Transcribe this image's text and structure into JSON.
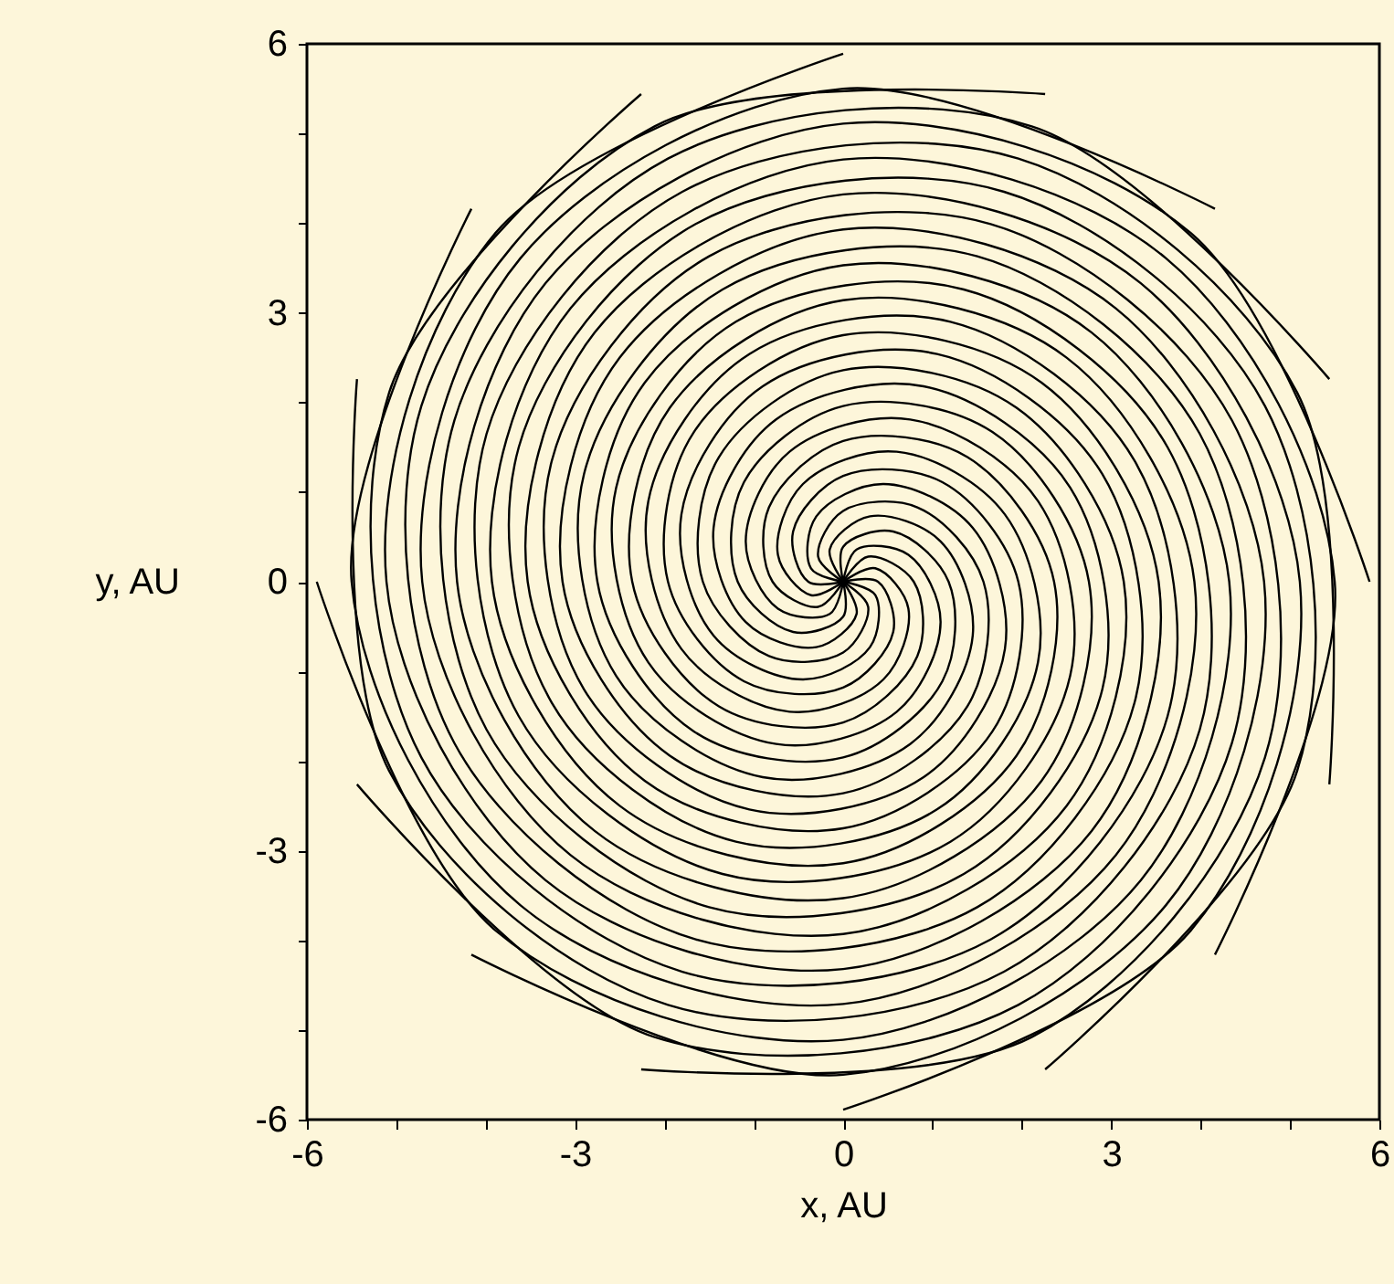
{
  "chart_data": {
    "type": "line",
    "xlabel": "x, AU",
    "ylabel": "y, AU",
    "xlim": [
      -6,
      6
    ],
    "ylim": [
      -6,
      6
    ],
    "xticks": [
      -6,
      {
        "value": -5,
        "label": null
      },
      {
        "value": -4,
        "label": null
      },
      -3,
      {
        "value": -2,
        "label": null
      },
      {
        "value": -1,
        "label": null
      },
      0,
      {
        "value": 1,
        "label": null
      },
      {
        "value": 2,
        "label": null
      },
      3,
      {
        "value": 4,
        "label": null
      },
      {
        "value": 5,
        "label": null
      },
      6
    ],
    "yticks": [
      -6,
      {
        "value": -5,
        "label": null
      },
      {
        "value": -4,
        "label": null
      },
      -3,
      {
        "value": -2,
        "label": null
      },
      {
        "value": -1,
        "label": null
      },
      0,
      {
        "value": 1,
        "label": null
      },
      {
        "value": 2,
        "label": null
      },
      3,
      {
        "value": 4,
        "label": null
      },
      {
        "value": 5,
        "label": null
      },
      6
    ],
    "grid": false,
    "legend": false,
    "marker": "none",
    "line_style": "solid",
    "series": [
      {
        "color": "#000000",
        "x": [
          0,
          0.28,
          0,
          -0.83,
          -1.57,
          -1.39,
          0,
          1.94,
          3.14,
          2.5,
          0,
          -3.05,
          -4.71,
          -3.61,
          0,
          4.16
        ],
        "values": [
          0,
          -0.28,
          -0.79,
          -0.83,
          0,
          1.39,
          2.36,
          1.94,
          0,
          -2.5,
          -3.93,
          -3.05,
          0,
          3.61,
          5.5,
          4.16
        ]
      },
      {
        "color": "#000000",
        "x": [
          0,
          0.36,
          0.3,
          -0.45,
          -1.45,
          -1.81,
          -0.9,
          1.05,
          2.9,
          3.26,
          1.5,
          -1.65,
          -4.35,
          -4.72,
          -2.11,
          2.26
        ],
        "values": [
          0,
          -0.15,
          -0.73,
          -1.09,
          -0.6,
          0.75,
          2.18,
          2.54,
          1.2,
          -1.35,
          -3.63,
          -3.99,
          -1.8,
          1.96,
          5.08,
          5.44
        ]
      },
      {
        "color": "#000000",
        "x": [
          0,
          0.39,
          0.56,
          0,
          -1.11,
          -1.96,
          -1.67,
          0,
          2.22,
          3.53,
          2.78,
          0,
          -3.33,
          -5.11,
          -3.89,
          0
        ],
        "values": [
          0,
          0,
          -0.56,
          -1.18,
          -1.11,
          0,
          1.67,
          2.75,
          2.22,
          0,
          -2.78,
          -4.32,
          -3.33,
          0,
          3.89,
          5.89
        ]
      },
      {
        "color": "#000000",
        "x": [
          0,
          0.36,
          0.73,
          0.45,
          -0.6,
          -1.81,
          -2.18,
          -1.05,
          1.2,
          3.26,
          3.63,
          1.65,
          -1.8,
          -4.72,
          -5.08,
          -2.26
        ],
        "values": [
          0,
          0.15,
          -0.3,
          -1.09,
          -1.45,
          -0.75,
          0.9,
          2.54,
          2.9,
          1.35,
          -1.5,
          -3.99,
          -4.35,
          -1.96,
          2.11,
          5.44
        ]
      },
      {
        "color": "#000000",
        "x": [
          0,
          0.28,
          0.79,
          0.83,
          0,
          -1.39,
          -2.36,
          -1.94,
          0,
          2.5,
          3.93,
          3.05,
          0,
          -3.61,
          -5.5,
          -4.16
        ],
        "values": [
          0,
          0.28,
          0,
          -0.83,
          -1.57,
          -1.39,
          0,
          1.94,
          3.14,
          2.5,
          0,
          -3.05,
          -4.71,
          -3.61,
          0,
          4.16
        ]
      },
      {
        "color": "#000000",
        "x": [
          0,
          0.15,
          0.73,
          1.09,
          0.6,
          -0.75,
          -2.18,
          -2.54,
          -1.2,
          1.35,
          3.63,
          3.99,
          1.8,
          -1.96,
          -5.08,
          -5.44
        ],
        "values": [
          0,
          0.36,
          0.3,
          -0.45,
          -1.45,
          -1.81,
          -0.9,
          1.05,
          2.9,
          3.26,
          1.5,
          -1.65,
          -4.35,
          -4.72,
          -2.11,
          2.26
        ]
      },
      {
        "color": "#000000",
        "x": [
          0,
          0,
          0.56,
          1.18,
          1.11,
          0,
          -1.67,
          -2.75,
          -2.22,
          0,
          2.78,
          4.32,
          3.33,
          0,
          -3.89,
          -5.89
        ],
        "values": [
          0,
          0.39,
          0.56,
          0,
          -1.11,
          -1.96,
          -1.67,
          0,
          2.22,
          3.53,
          2.78,
          0,
          -3.33,
          -5.11,
          -3.89,
          0
        ]
      },
      {
        "color": "#000000",
        "x": [
          0,
          -0.15,
          0.3,
          1.09,
          1.45,
          0.75,
          -0.9,
          -2.54,
          -2.9,
          -1.35,
          1.5,
          3.99,
          4.35,
          1.96,
          -2.11,
          -5.44
        ],
        "values": [
          0,
          0.36,
          0.73,
          0.45,
          -0.6,
          -1.81,
          -2.18,
          -1.05,
          1.2,
          3.26,
          3.63,
          1.65,
          -1.8,
          -4.72,
          -5.08,
          -2.26
        ]
      },
      {
        "color": "#000000",
        "x": [
          0,
          -0.28,
          0,
          0.83,
          1.57,
          1.39,
          0,
          -1.94,
          -3.14,
          -2.5,
          0,
          3.05,
          4.71,
          3.61,
          0,
          -4.16
        ],
        "values": [
          0,
          0.28,
          0.79,
          0.83,
          0,
          -1.39,
          -2.36,
          -1.94,
          0,
          2.5,
          3.93,
          3.05,
          0,
          -3.61,
          -5.5,
          -4.16
        ]
      },
      {
        "color": "#000000",
        "x": [
          0,
          -0.36,
          -0.3,
          0.45,
          1.45,
          1.81,
          0.9,
          -1.05,
          -2.9,
          -3.26,
          -1.5,
          1.65,
          4.35,
          4.72,
          2.11,
          -2.26
        ],
        "values": [
          0,
          0.15,
          0.73,
          1.09,
          0.6,
          -0.75,
          -2.18,
          -2.54,
          -1.2,
          1.35,
          3.63,
          3.99,
          1.8,
          -1.96,
          -5.08,
          -5.44
        ]
      },
      {
        "color": "#000000",
        "x": [
          0,
          -0.39,
          -0.56,
          0,
          1.11,
          1.96,
          1.67,
          0,
          -2.22,
          -3.53,
          -2.78,
          0,
          3.33,
          5.11,
          3.89,
          0
        ],
        "values": [
          0,
          0,
          0.56,
          1.18,
          1.11,
          0,
          -1.67,
          -2.75,
          -2.22,
          0,
          2.78,
          4.32,
          3.33,
          0,
          -3.89,
          -5.89
        ]
      },
      {
        "color": "#000000",
        "x": [
          0,
          -0.36,
          -0.73,
          -0.45,
          0.6,
          1.81,
          2.18,
          1.05,
          -1.2,
          -3.26,
          -3.63,
          -1.65,
          1.8,
          4.72,
          5.08,
          2.26
        ],
        "values": [
          0,
          -0.15,
          0.3,
          1.09,
          1.45,
          0.75,
          -0.9,
          -2.54,
          -2.9,
          -1.35,
          1.5,
          3.99,
          4.35,
          1.96,
          -2.11,
          -5.44
        ]
      },
      {
        "color": "#000000",
        "x": [
          0,
          -0.28,
          -0.79,
          -0.83,
          0,
          1.39,
          2.36,
          1.94,
          0,
          -2.5,
          -3.93,
          -3.05,
          0,
          3.61,
          5.5,
          4.16
        ],
        "values": [
          0,
          -0.28,
          0,
          0.83,
          1.57,
          1.39,
          0,
          -1.94,
          -3.14,
          -2.5,
          0,
          3.05,
          4.71,
          3.61,
          0,
          -4.16
        ]
      },
      {
        "color": "#000000",
        "x": [
          0,
          -0.15,
          -0.73,
          -1.09,
          -0.6,
          0.75,
          2.18,
          2.54,
          1.2,
          -1.35,
          -3.63,
          -3.99,
          -1.8,
          1.96,
          5.08,
          5.44
        ],
        "values": [
          0,
          -0.36,
          -0.3,
          0.45,
          1.45,
          1.81,
          0.9,
          -1.05,
          -2.9,
          -3.26,
          -1.5,
          1.65,
          4.35,
          4.72,
          2.11,
          -2.26
        ]
      },
      {
        "color": "#000000",
        "x": [
          0,
          0,
          -0.56,
          -1.18,
          -1.11,
          0,
          1.67,
          2.75,
          2.22,
          0,
          -2.78,
          -4.32,
          -3.33,
          0,
          3.89,
          5.89
        ],
        "values": [
          0,
          -0.39,
          -0.56,
          0,
          1.11,
          1.96,
          1.67,
          0,
          -2.22,
          -3.53,
          -2.78,
          0,
          3.33,
          5.11,
          3.89,
          0
        ]
      },
      {
        "color": "#000000",
        "x": [
          0,
          0.15,
          -0.3,
          -1.09,
          -1.45,
          -0.75,
          0.9,
          2.54,
          2.9,
          1.35,
          -1.5,
          -3.99,
          -4.35,
          -1.96,
          2.11,
          5.44
        ],
        "values": [
          0,
          -0.36,
          -0.73,
          -0.45,
          0.6,
          1.81,
          2.18,
          1.05,
          -1.2,
          -3.26,
          -3.63,
          -1.65,
          1.8,
          4.72,
          5.08,
          2.26
        ]
      }
    ]
  }
}
